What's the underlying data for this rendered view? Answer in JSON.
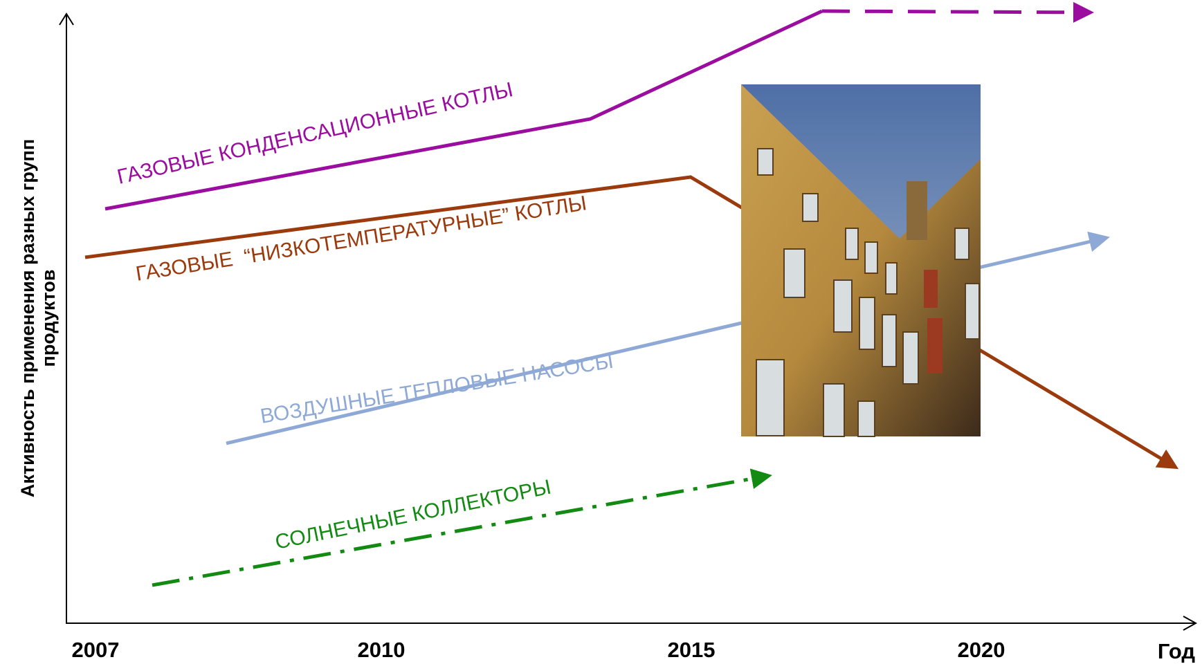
{
  "y_axis_label": [
    "Активность применения разных групп",
    "продуктов"
  ],
  "x_axis_label": "Год",
  "years": [
    "2007",
    "2010",
    "2015",
    "2020"
  ],
  "lines": [
    {
      "label": "ГАЗОВЫЕ КОНДЕНСАЦИОННЫЕ КОТЛЫ"
    },
    {
      "label": "ГАЗОВЫЕ  “НИЗКОТЕМПЕРАТУРНЫЕ” КОТЛЫ"
    },
    {
      "label": "ВОЗДУШНЫЕ ТЕПЛОВЫЕ НАСОСЫ"
    },
    {
      "label": "СОЛНЕЧНЫЕ КОЛЛЕКТОРЫ"
    }
  ]
}
